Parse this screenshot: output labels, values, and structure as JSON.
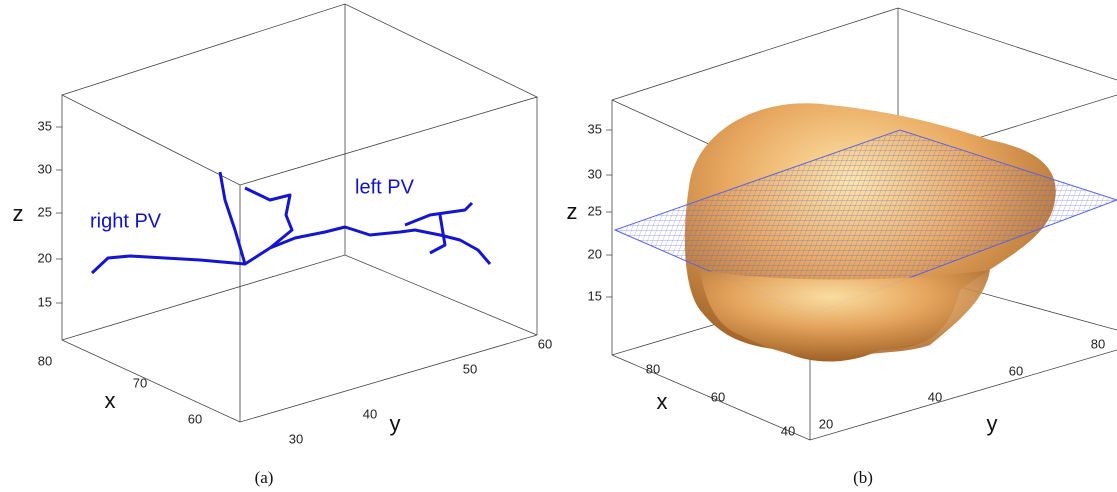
{
  "panels": [
    {
      "caption": "(a)",
      "axes": {
        "x": {
          "label": "x",
          "ticks": [
            "80",
            "70",
            "60"
          ]
        },
        "y": {
          "label": "y",
          "ticks": [
            "30",
            "40",
            "50",
            "60"
          ]
        },
        "z": {
          "label": "z",
          "ticks": [
            "35",
            "30",
            "25",
            "20",
            "15"
          ]
        }
      },
      "annotations": [
        "right PV",
        "left PV"
      ]
    },
    {
      "caption": "(b)",
      "axes": {
        "x": {
          "label": "x",
          "ticks": [
            "80",
            "60",
            "40"
          ]
        },
        "y": {
          "label": "y",
          "ticks": [
            "20",
            "40",
            "60",
            "80"
          ]
        },
        "z": {
          "label": "z",
          "ticks": [
            "35",
            "30",
            "25",
            "20",
            "15"
          ]
        }
      }
    }
  ]
}
